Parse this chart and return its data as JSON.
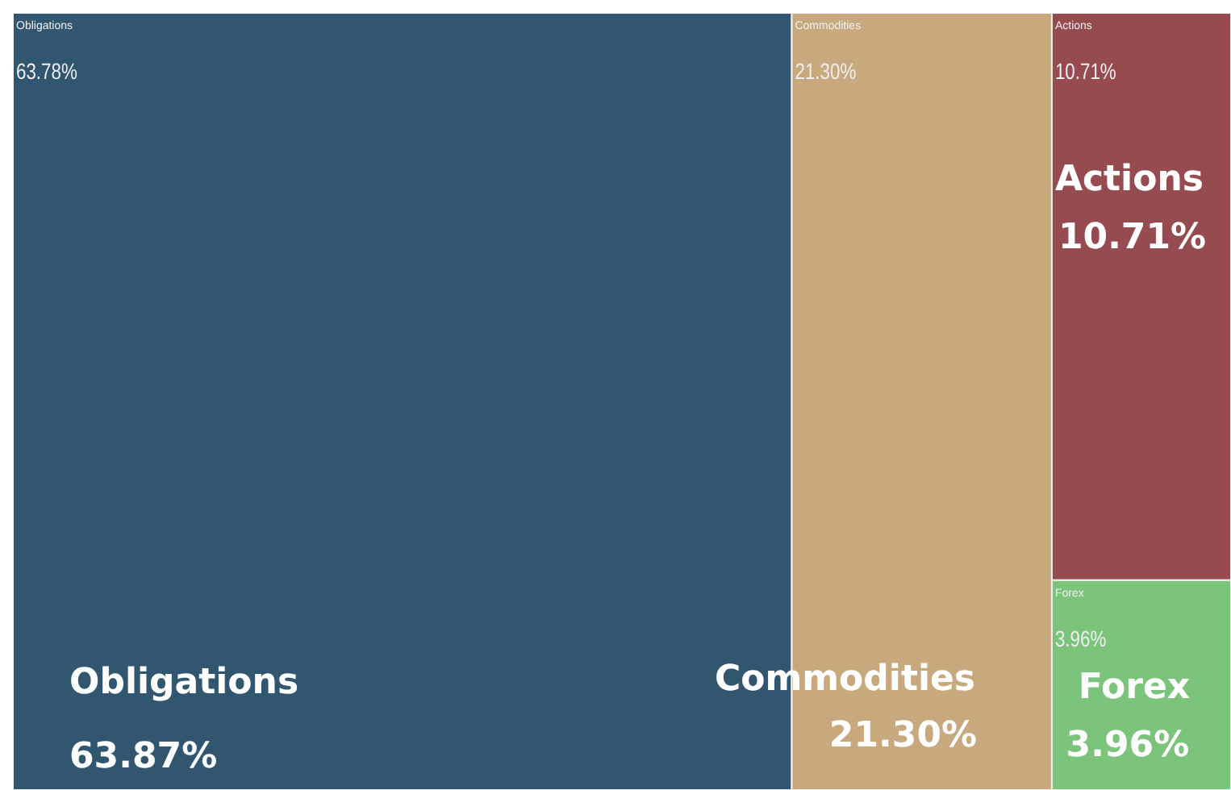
{
  "chart_data": {
    "type": "other",
    "categories": [
      "Obligations",
      "Commodities",
      "Actions",
      "Forex"
    ],
    "values": [
      63.78,
      21.3,
      10.71,
      3.96
    ],
    "value_labels": [
      "63.78%",
      "21.30%",
      "10.71%",
      "3.96%"
    ],
    "colors": [
      "#31566f",
      "#c8a97e",
      "#954b4f",
      "#7cc47c"
    ],
    "annotations": [
      "Obligations",
      "63.87%",
      "Commodities",
      "21.30%",
      "Actions",
      "10.71%",
      "Forex",
      "3.96%"
    ]
  }
}
